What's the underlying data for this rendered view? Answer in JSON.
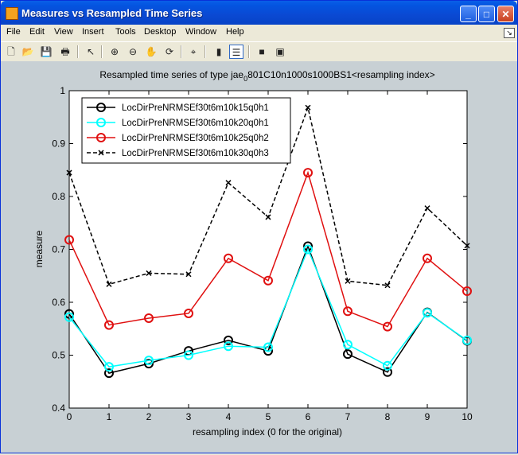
{
  "window": {
    "title": "Measures vs Resampled Time Series"
  },
  "titlebar_buttons": {
    "minimize": "_",
    "maximize": "□",
    "close": "✕"
  },
  "menu": [
    "File",
    "Edit",
    "View",
    "Insert",
    "Tools",
    "Desktop",
    "Window",
    "Help"
  ],
  "toolbar": {
    "icons": [
      "new-file-icon",
      "open-folder-icon",
      "save-icon",
      "print-icon",
      "pointer-icon",
      "zoom-in-icon",
      "zoom-out-icon",
      "pan-hand-icon",
      "rotate-3d-icon",
      "data-cursor-icon",
      "colorbar-icon",
      "legend-icon",
      "hide-plot-tools-icon",
      "show-plot-tools-icon"
    ]
  },
  "chart_data": {
    "type": "line",
    "title_main": "Resampled time series of type jae",
    "title_sub": "0",
    "title_rest": "801C10n1000s1000BS1<resampling index>",
    "xlabel": "resampling index (0 for the original)",
    "ylabel": "measure",
    "xlim": [
      0,
      10
    ],
    "ylim": [
      0.4,
      1
    ],
    "xticks": [
      "0",
      "1",
      "2",
      "3",
      "4",
      "5",
      "6",
      "7",
      "8",
      "9",
      "10"
    ],
    "yticks": [
      "0.4",
      "0.5",
      "0.6",
      "0.7",
      "0.8",
      "0.9",
      "1"
    ],
    "x": [
      0,
      1,
      2,
      3,
      4,
      5,
      6,
      7,
      8,
      9,
      10
    ],
    "legend_position": "top-left",
    "series": [
      {
        "name": "LocDirPreNRMSEf30t6m10k15q0h1",
        "color": "#000000",
        "marker": "circle",
        "dash": "solid",
        "values": [
          0.578,
          0.466,
          0.484,
          0.508,
          0.528,
          0.508,
          0.706,
          0.502,
          0.468,
          0.581,
          0.527
        ]
      },
      {
        "name": "LocDirPreNRMSEf30t6m10k20q0h1",
        "color": "#00ffff",
        "marker": "circle",
        "dash": "solid",
        "values": [
          0.572,
          0.478,
          0.49,
          0.5,
          0.517,
          0.515,
          0.7,
          0.52,
          0.48,
          0.58,
          0.528
        ]
      },
      {
        "name": "LocDirPreNRMSEf30t6m10k25q0h2",
        "color": "#e01010",
        "marker": "circle",
        "dash": "solid",
        "values": [
          0.718,
          0.557,
          0.57,
          0.579,
          0.683,
          0.641,
          0.845,
          0.583,
          0.554,
          0.683,
          0.621
        ]
      },
      {
        "name": "LocDirPreNRMSEf30t6m10k30q0h3",
        "color": "#000000",
        "marker": "x",
        "dash": "dashed",
        "values": [
          0.845,
          0.634,
          0.655,
          0.653,
          0.826,
          0.761,
          0.968,
          0.64,
          0.632,
          0.778,
          0.707
        ]
      }
    ]
  }
}
